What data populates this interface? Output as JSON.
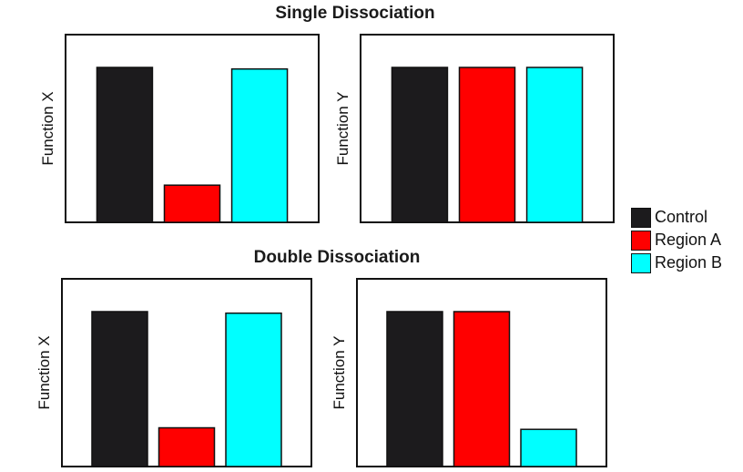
{
  "colors": {
    "Control": "#1c1b1d",
    "Region A": "#ff0000",
    "Region B": "#00ffff"
  },
  "legend": {
    "items": [
      {
        "label": "Control",
        "color": "#1c1b1d"
      },
      {
        "label": "Region A",
        "color": "#ff0000"
      },
      {
        "label": "Region B",
        "color": "#00ffff"
      }
    ],
    "placement": "right"
  },
  "sections": {
    "single": "Single Dissociation",
    "double": "Double Dissociation"
  },
  "chart_data": [
    {
      "type": "bar",
      "group": "Single Dissociation",
      "ylabel": "Function X",
      "categories": [
        "Control",
        "Region A",
        "Region B"
      ],
      "values": [
        100,
        24,
        99
      ],
      "ylim": [
        0,
        120
      ]
    },
    {
      "type": "bar",
      "group": "Single Dissociation",
      "ylabel": "Function Y",
      "categories": [
        "Control",
        "Region A",
        "Region B"
      ],
      "values": [
        100,
        100,
        100
      ],
      "ylim": [
        0,
        120
      ]
    },
    {
      "type": "bar",
      "group": "Double Dissociation",
      "ylabel": "Function X",
      "categories": [
        "Control",
        "Region A",
        "Region B"
      ],
      "values": [
        100,
        25,
        99
      ],
      "ylim": [
        0,
        120
      ]
    },
    {
      "type": "bar",
      "group": "Double Dissociation",
      "ylabel": "Function Y",
      "categories": [
        "Control",
        "Region A",
        "Region B"
      ],
      "values": [
        100,
        100,
        24
      ],
      "ylim": [
        0,
        120
      ]
    }
  ]
}
